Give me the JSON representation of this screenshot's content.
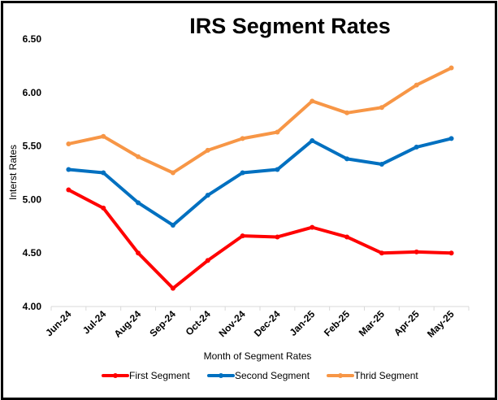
{
  "chart_data": {
    "type": "line",
    "title": "IRS Segment Rates",
    "xlabel": "Month of Segment Rates",
    "ylabel": "Interst Rates",
    "categories": [
      "Jun-24",
      "Jul-24",
      "Aug-24",
      "Sep-24",
      "Oct-24",
      "Nov-24",
      "Dec-24",
      "Jan-25",
      "Feb-25",
      "Mar-25",
      "Apr-25",
      "May-25"
    ],
    "ylim": [
      4.0,
      6.5
    ],
    "yticks": [
      "4.00",
      "4.50",
      "5.00",
      "5.50",
      "6.00",
      "6.50"
    ],
    "grid": false,
    "legend_position": "bottom",
    "series": [
      {
        "name": "First Segment",
        "color": "#ff0000",
        "values": [
          5.09,
          4.92,
          4.5,
          4.17,
          4.43,
          4.66,
          4.65,
          4.74,
          4.65,
          4.5,
          4.51,
          4.5
        ]
      },
      {
        "name": "Second Segment",
        "color": "#0070c0",
        "values": [
          5.28,
          5.25,
          4.97,
          4.76,
          5.04,
          5.25,
          5.28,
          5.55,
          5.38,
          5.33,
          5.49,
          5.57
        ]
      },
      {
        "name": "Thrid Segment",
        "color": "#f79646",
        "values": [
          5.52,
          5.59,
          5.4,
          5.25,
          5.46,
          5.57,
          5.63,
          5.92,
          5.81,
          5.86,
          6.07,
          6.23
        ]
      }
    ]
  }
}
